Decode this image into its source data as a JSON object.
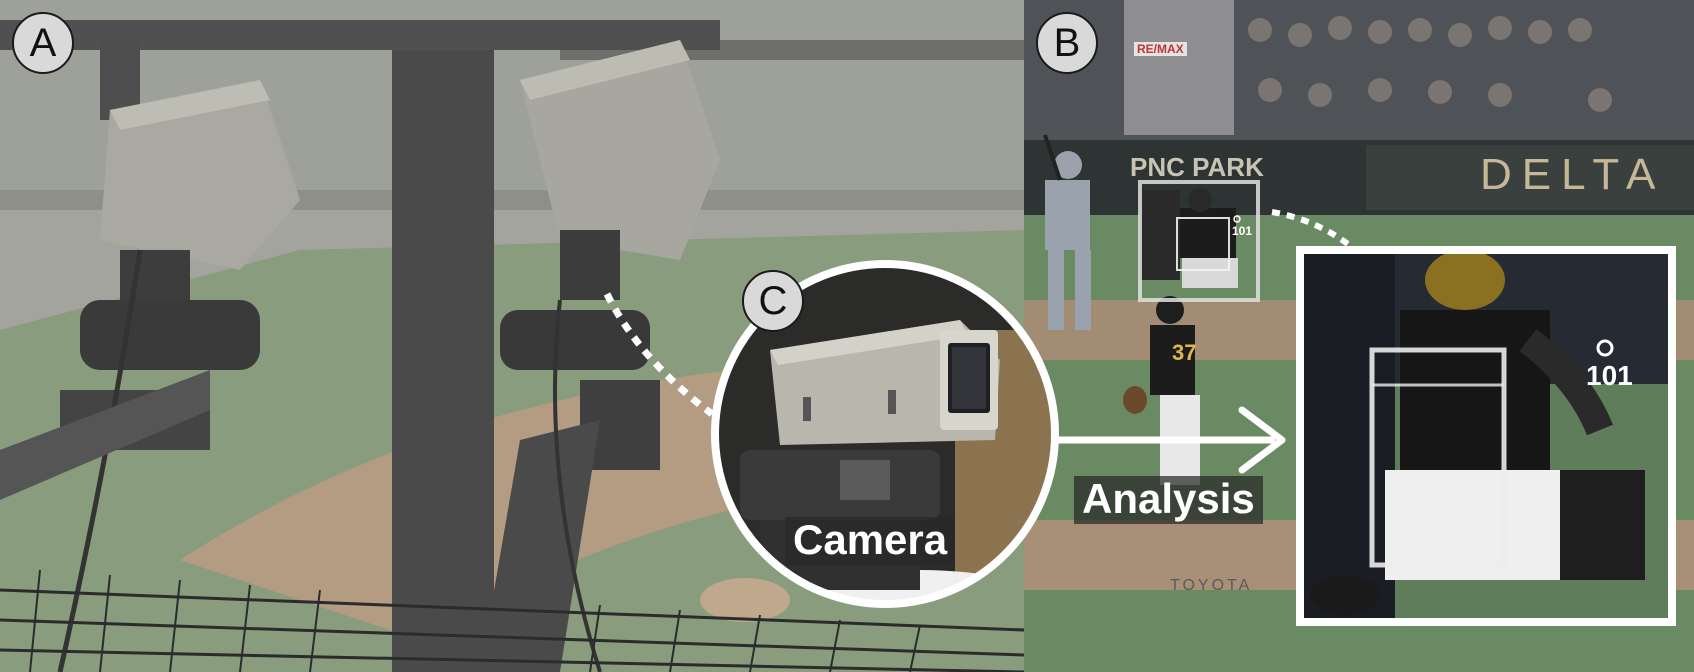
{
  "panels": {
    "a": {
      "label": "A"
    },
    "b": {
      "label": "B"
    },
    "c": {
      "label": "C"
    }
  },
  "captions": {
    "camera": "Camera",
    "analysis": "Analysis"
  },
  "scene_text": {
    "ballpark_sign": "PNC PARK",
    "sponsor_sign": "DELTA",
    "remax_sign": "RE/MAX",
    "jersey_number": "37",
    "tracking_id": "101",
    "tracking_id_zoom": "101",
    "field_sign": "TOYOTA"
  },
  "colors": {
    "panel_label_bg": "#d9d9d9",
    "frame_white": "#ffffff",
    "caption_bg": "#2f2f2f",
    "field_green": "#5f8a5a",
    "field_tan": "#c9a67c"
  }
}
